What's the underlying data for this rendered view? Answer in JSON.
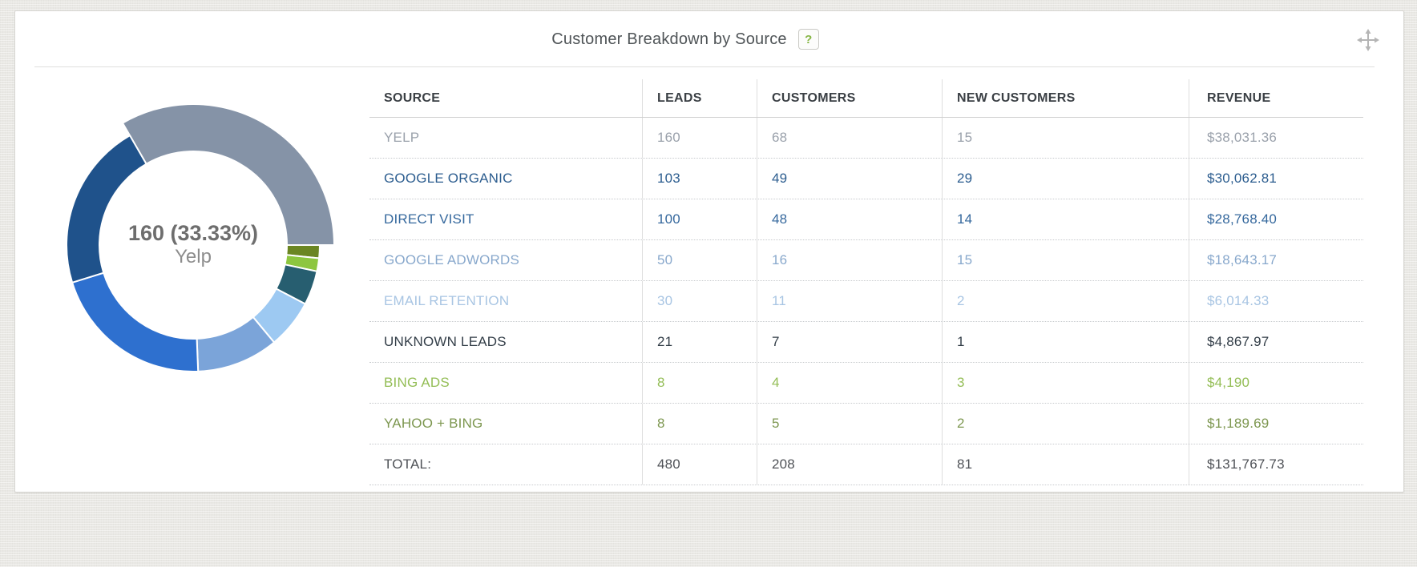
{
  "header": {
    "title": "Customer Breakdown by Source",
    "help_icon": "?"
  },
  "donut": {
    "center_value": "160 (33.33%)",
    "center_label": "Yelp"
  },
  "table": {
    "columns": [
      "SOURCE",
      "LEADS",
      "CUSTOMERS",
      "NEW CUSTOMERS",
      "REVENUE"
    ],
    "rows": [
      {
        "source": "YELP",
        "leads": "160",
        "customers": "68",
        "new_customers": "15",
        "revenue": "$38,031.36",
        "color": "#9aa1ab"
      },
      {
        "source": "GOOGLE ORGANIC",
        "leads": "103",
        "customers": "49",
        "new_customers": "29",
        "revenue": "$30,062.81",
        "color": "#2c5d8f"
      },
      {
        "source": "DIRECT VISIT",
        "leads": "100",
        "customers": "48",
        "new_customers": "14",
        "revenue": "$28,768.40",
        "color": "#35689d"
      },
      {
        "source": "GOOGLE ADWORDS",
        "leads": "50",
        "customers": "16",
        "new_customers": "15",
        "revenue": "$18,643.17",
        "color": "#88a8cc"
      },
      {
        "source": "EMAIL RETENTION",
        "leads": "30",
        "customers": "11",
        "new_customers": "2",
        "revenue": "$6,014.33",
        "color": "#a8c5e3"
      },
      {
        "source": "UNKNOWN LEADS",
        "leads": "21",
        "customers": "7",
        "new_customers": "1",
        "revenue": "$4,867.97",
        "color": "#333e48"
      },
      {
        "source": "BING ADS",
        "leads": "8",
        "customers": "4",
        "new_customers": "3",
        "revenue": "$4,190",
        "color": "#93bd55"
      },
      {
        "source": "YAHOO + BING",
        "leads": "8",
        "customers": "5",
        "new_customers": "2",
        "revenue": "$1,189.69",
        "color": "#7d9750"
      }
    ],
    "total": {
      "source": "TOTAL:",
      "leads": "480",
      "customers": "208",
      "new_customers": "81",
      "revenue": "$131,767.73",
      "color": "#4f5257"
    }
  },
  "chart_data": {
    "type": "pie",
    "title": "Customer Breakdown by Source",
    "unit": "leads",
    "categories": [
      "Yelp",
      "Google Organic",
      "Direct Visit",
      "Google Adwords",
      "Email Retention",
      "Unknown Leads",
      "Bing Ads",
      "Yahoo + Bing"
    ],
    "values": [
      160,
      103,
      100,
      50,
      30,
      21,
      8,
      8
    ],
    "total": 480,
    "colors": [
      "#8593a7",
      "#1f528b",
      "#2e70cf",
      "#7ba4d9",
      "#9dc9f2",
      "#275e70",
      "#8dc63f",
      "#6b8622"
    ],
    "selected": {
      "label": "Yelp",
      "value": 160,
      "percent": "33.33%"
    },
    "start_angle_deg": -30,
    "clockwise_order": [
      "Yelp",
      "Yahoo + Bing",
      "Bing Ads",
      "Unknown Leads",
      "Email Retention",
      "Google Adwords",
      "Direct Visit",
      "Google Organic"
    ],
    "exploded_slice": "Yelp",
    "outer_radius": 158,
    "exploded_outer_radius": 176,
    "inner_radius": 117,
    "legend": "none"
  }
}
